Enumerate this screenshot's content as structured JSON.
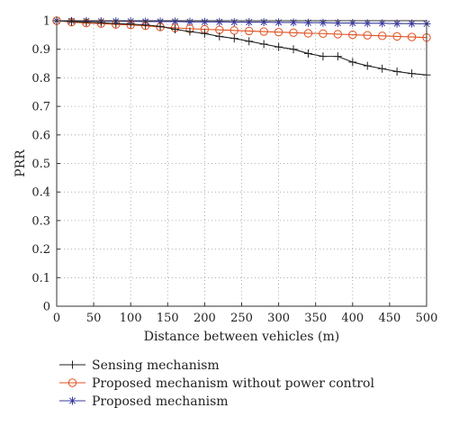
{
  "chart_data": {
    "type": "line",
    "xlabel": "Distance between vehicles (m)",
    "ylabel": "PRR",
    "xlim": [
      0,
      500
    ],
    "ylim": [
      0,
      1
    ],
    "xticks": [
      "0",
      "50",
      "100",
      "150",
      "200",
      "250",
      "300",
      "350",
      "400",
      "450",
      "500"
    ],
    "yticks": [
      "0",
      "0.1",
      "0.2",
      "0.3",
      "0.4",
      "0.5",
      "0.6",
      "0.7",
      "0.8",
      "0.9",
      "1"
    ],
    "grid": true,
    "grid_style": "dotted",
    "legend_position": "below-plot",
    "x": [
      0,
      20,
      40,
      60,
      80,
      100,
      120,
      140,
      160,
      180,
      200,
      220,
      240,
      260,
      280,
      300,
      320,
      340,
      360,
      380,
      400,
      420,
      440,
      460,
      480,
      500
    ],
    "series": [
      {
        "name": "Sensing mechanism",
        "marker": "plus",
        "color": "#222222",
        "values": [
          1.0,
          0.997,
          0.995,
          0.993,
          0.99,
          0.988,
          0.985,
          0.98,
          0.97,
          0.962,
          0.955,
          0.945,
          0.938,
          0.928,
          0.918,
          0.908,
          0.9,
          0.885,
          0.875,
          0.875,
          0.855,
          0.842,
          0.832,
          0.822,
          0.815,
          0.81
        ]
      },
      {
        "name": "Proposed mechanism without power control",
        "marker": "circle",
        "color": "#e0501e",
        "values": [
          1.0,
          0.995,
          0.992,
          0.99,
          0.987,
          0.985,
          0.982,
          0.978,
          0.975,
          0.972,
          0.97,
          0.968,
          0.966,
          0.964,
          0.962,
          0.96,
          0.958,
          0.956,
          0.955,
          0.953,
          0.951,
          0.949,
          0.947,
          0.945,
          0.943,
          0.941
        ]
      },
      {
        "name": "Proposed mechanism",
        "marker": "asterisk",
        "color": "#3a3aa0",
        "values": [
          1.0,
          0.999,
          0.999,
          0.998,
          0.998,
          0.998,
          0.997,
          0.997,
          0.997,
          0.996,
          0.996,
          0.996,
          0.995,
          0.995,
          0.995,
          0.994,
          0.994,
          0.993,
          0.993,
          0.992,
          0.992,
          0.991,
          0.991,
          0.99,
          0.99,
          0.989
        ]
      }
    ]
  }
}
